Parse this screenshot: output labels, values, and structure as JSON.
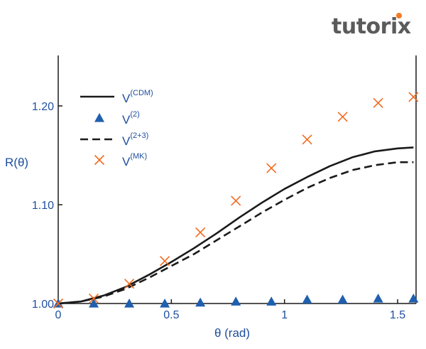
{
  "logo": {
    "text": "tutorix",
    "accent_color": "#f47a20"
  },
  "chart_data": {
    "type": "line",
    "title": "",
    "xlabel": "θ (rad)",
    "ylabel": "R(θ)",
    "xlim": [
      0,
      1.57
    ],
    "ylim": [
      1.0,
      1.25
    ],
    "x_ticks": [
      0,
      0.5,
      1,
      1.5
    ],
    "x_tick_labels": [
      "0",
      "0.5",
      "1",
      "1.5"
    ],
    "y_ticks": [
      1.0,
      1.1,
      1.2
    ],
    "y_tick_labels": [
      "1.00",
      "1.10",
      "1.20"
    ],
    "grid": false,
    "legend_position": "top-left",
    "series": [
      {
        "name": "V(CDM)",
        "base": "V",
        "sup": "(CDM)",
        "style": "solid-line",
        "color": "#1a1a1a",
        "x": [
          0,
          0.1,
          0.2,
          0.3,
          0.4,
          0.5,
          0.6,
          0.7,
          0.8,
          0.9,
          1.0,
          1.1,
          1.2,
          1.3,
          1.4,
          1.5,
          1.57
        ],
        "y": [
          1.0,
          1.002,
          1.008,
          1.017,
          1.029,
          1.042,
          1.056,
          1.071,
          1.087,
          1.102,
          1.116,
          1.128,
          1.139,
          1.148,
          1.154,
          1.157,
          1.158
        ]
      },
      {
        "name": "V(2)",
        "base": "V",
        "sup": "(2)",
        "style": "triangle-marker",
        "color": "#1f5fae",
        "x": [
          0,
          0.157,
          0.314,
          0.471,
          0.628,
          0.785,
          0.942,
          1.1,
          1.257,
          1.414,
          1.57
        ],
        "y": [
          1.0,
          1.0,
          1.0,
          1.0,
          1.001,
          1.002,
          1.002,
          1.004,
          1.004,
          1.005,
          1.005
        ]
      },
      {
        "name": "V(2+3)",
        "base": "V",
        "sup": "(2+3)",
        "style": "dashed-line",
        "color": "#1a1a1a",
        "x": [
          0,
          0.1,
          0.2,
          0.3,
          0.4,
          0.5,
          0.6,
          0.7,
          0.8,
          0.9,
          1.0,
          1.1,
          1.2,
          1.3,
          1.4,
          1.5,
          1.57
        ],
        "y": [
          1.0,
          1.002,
          1.007,
          1.015,
          1.026,
          1.038,
          1.05,
          1.064,
          1.078,
          1.092,
          1.105,
          1.117,
          1.127,
          1.135,
          1.14,
          1.143,
          1.143
        ]
      },
      {
        "name": "V(MK)",
        "base": "V",
        "sup": "(MK)",
        "style": "x-marker",
        "color": "#f26a21",
        "x": [
          0,
          0.157,
          0.314,
          0.471,
          0.628,
          0.785,
          0.942,
          1.1,
          1.257,
          1.414,
          1.57
        ],
        "y": [
          1.0,
          1.005,
          1.02,
          1.043,
          1.072,
          1.104,
          1.137,
          1.166,
          1.189,
          1.203,
          1.209
        ]
      }
    ]
  }
}
